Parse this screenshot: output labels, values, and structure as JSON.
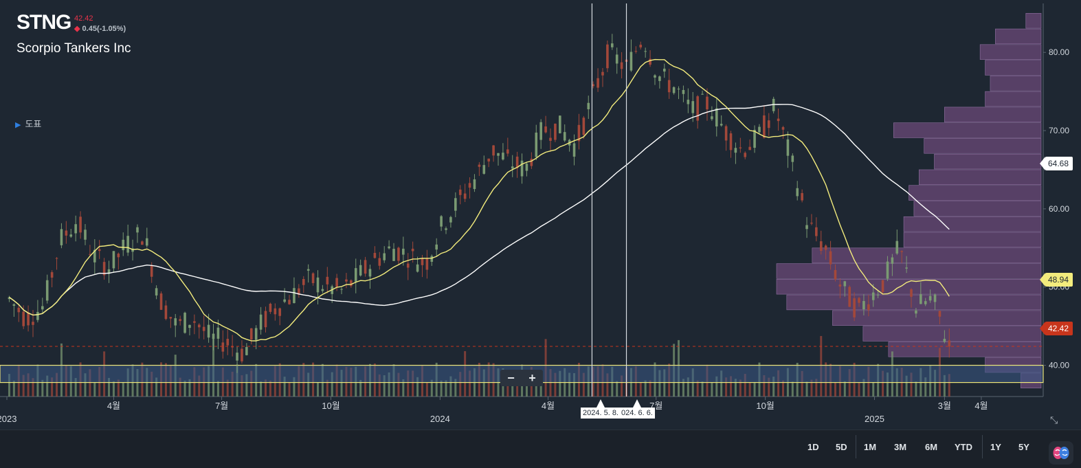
{
  "header": {
    "ticker": "STNG",
    "last_price": "42.42",
    "change": "0.45(-1.05%)",
    "company": "Scorpio Tankers Inc",
    "legend_toggle": "도표"
  },
  "colors": {
    "background": "#1e2732",
    "up_candle": "#7a9a72",
    "down_candle": "#a3483a",
    "ma_short": "#f3ec7d",
    "ma_long": "#ffffff",
    "volume_profile": "#6b4a78",
    "highlight_band": "#3a5a86"
  },
  "zoom": {
    "minus": "−",
    "plus": "+"
  },
  "price_labels": {
    "ma_long": "64.68",
    "ma_short": "48.94",
    "last": "42.42"
  },
  "crosshair_dates": [
    "2024. 5. 8.",
    "024. 6. 6."
  ],
  "range_buttons": [
    "1D",
    "5D",
    "1M",
    "3M",
    "6M",
    "YTD",
    "1Y",
    "5Y"
  ],
  "chart_data": {
    "type": "candlestick",
    "title": "STNG",
    "y_axis": {
      "ticks": [
        40,
        50,
        60,
        70,
        80
      ],
      "tick_labels": [
        "40.00",
        "50.00",
        "60.00",
        "70.00",
        "80.00"
      ],
      "range": [
        37.5,
        84.5
      ]
    },
    "x_axis": {
      "labels": [
        "2023",
        "4월",
        "7월",
        "10월",
        "2024",
        "4월",
        "7월",
        "10월",
        "2025",
        "3월",
        "4월"
      ],
      "range": [
        "2023-01",
        "2025-04"
      ]
    },
    "close_series": [
      [
        "2023-01-03",
        48.5
      ],
      [
        "2023-01-17",
        46.0
      ],
      [
        "2023-02-01",
        47.5
      ],
      [
        "2023-02-15",
        56.0
      ],
      [
        "2023-03-01",
        58.5
      ],
      [
        "2023-03-15",
        54.0
      ],
      [
        "2023-03-29",
        52.5
      ],
      [
        "2023-04-12",
        55.5
      ],
      [
        "2023-04-26",
        57.0
      ],
      [
        "2023-05-10",
        48.5
      ],
      [
        "2023-05-24",
        45.0
      ],
      [
        "2023-06-07",
        46.0
      ],
      [
        "2023-06-21",
        43.5
      ],
      [
        "2023-07-05",
        43.0
      ],
      [
        "2023-07-19",
        41.5
      ],
      [
        "2023-08-02",
        45.0
      ],
      [
        "2023-08-16",
        47.5
      ],
      [
        "2023-08-30",
        49.0
      ],
      [
        "2023-09-13",
        51.0
      ],
      [
        "2023-09-27",
        50.0
      ],
      [
        "2023-10-11",
        49.5
      ],
      [
        "2023-10-25",
        51.5
      ],
      [
        "2023-11-08",
        53.5
      ],
      [
        "2023-11-22",
        55.0
      ],
      [
        "2023-12-06",
        54.0
      ],
      [
        "2023-12-20",
        53.0
      ],
      [
        "2024-01-03",
        58.0
      ],
      [
        "2024-01-17",
        61.0
      ],
      [
        "2024-01-31",
        64.0
      ],
      [
        "2024-02-14",
        67.5
      ],
      [
        "2024-02-28",
        66.0
      ],
      [
        "2024-03-13",
        65.0
      ],
      [
        "2024-03-27",
        70.0
      ],
      [
        "2024-04-10",
        70.5
      ],
      [
        "2024-04-24",
        68.0
      ],
      [
        "2024-05-08",
        74.0
      ],
      [
        "2024-05-22",
        80.0
      ],
      [
        "2024-06-06",
        78.0
      ],
      [
        "2024-06-20",
        82.0
      ],
      [
        "2024-07-03",
        77.0
      ],
      [
        "2024-07-17",
        75.5
      ],
      [
        "2024-07-31",
        72.5
      ],
      [
        "2024-08-14",
        73.5
      ],
      [
        "2024-08-28",
        70.0
      ],
      [
        "2024-09-11",
        67.5
      ],
      [
        "2024-09-25",
        69.0
      ],
      [
        "2024-10-09",
        73.0
      ],
      [
        "2024-10-23",
        66.0
      ],
      [
        "2024-11-06",
        58.0
      ],
      [
        "2024-11-20",
        55.0
      ],
      [
        "2024-12-04",
        50.0
      ],
      [
        "2024-12-18",
        47.0
      ],
      [
        "2025-01-08",
        50.5
      ],
      [
        "2025-01-22",
        55.0
      ],
      [
        "2025-02-05",
        47.5
      ],
      [
        "2025-02-19",
        48.5
      ],
      [
        "2025-03-05",
        42.42
      ]
    ],
    "moving_averages": [
      {
        "label": "64.68",
        "color": "#ffffff",
        "last": 64.68
      },
      {
        "label": "48.94",
        "color": "#f3ec7d",
        "last": 48.94
      }
    ],
    "last_price_line": 42.42,
    "volume_profile": [
      [
        84,
        3
      ],
      [
        82,
        9
      ],
      [
        80,
        12
      ],
      [
        78,
        11
      ],
      [
        76,
        10
      ],
      [
        74,
        11
      ],
      [
        72,
        19
      ],
      [
        70,
        29
      ],
      [
        68,
        23
      ],
      [
        66,
        21
      ],
      [
        64,
        24
      ],
      [
        62,
        26
      ],
      [
        60,
        25
      ],
      [
        58,
        27
      ],
      [
        56,
        27
      ],
      [
        54,
        45
      ],
      [
        52,
        52
      ],
      [
        50,
        52
      ],
      [
        48,
        50
      ],
      [
        46,
        41
      ],
      [
        44,
        35
      ],
      [
        42,
        30
      ],
      [
        40,
        11
      ],
      [
        38,
        4
      ]
    ],
    "highlight_band": [
      37.8,
      40.0
    ],
    "grid": false,
    "legend": "none"
  }
}
